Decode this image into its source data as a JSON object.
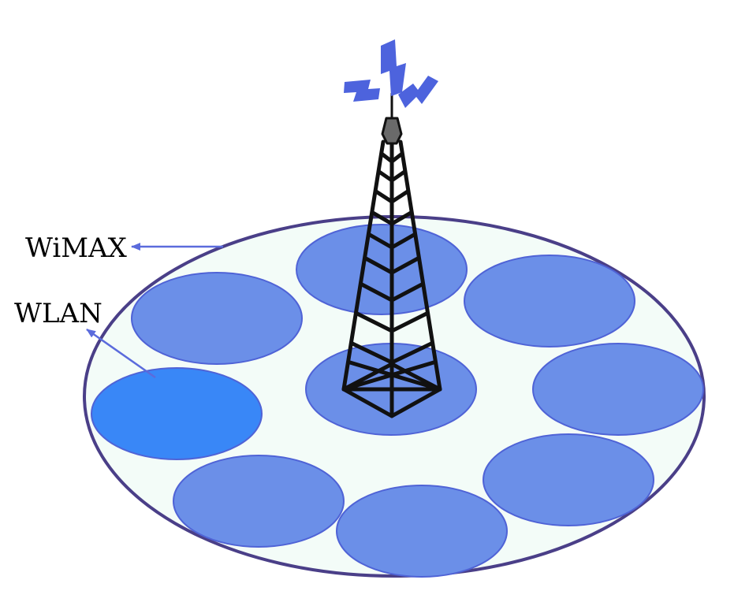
{
  "labels": {
    "wimax": "WiMAX",
    "wlan": "WLAN"
  },
  "colors": {
    "coverage_fill": "#f3fcf8",
    "coverage_stroke": "#4a3f88",
    "cell_fill": "#6b8fe8",
    "cell_stroke": "#4f63d6",
    "highlight_cell_fill": "#3987f7",
    "tower_stroke": "#111111",
    "tower_tip": "#6a6a6a",
    "signal": "#4d63dd",
    "arrow": "#5b6bdc"
  },
  "icons": {
    "tower": "radio-tower-icon",
    "signal": "signal-bolt-icon"
  }
}
